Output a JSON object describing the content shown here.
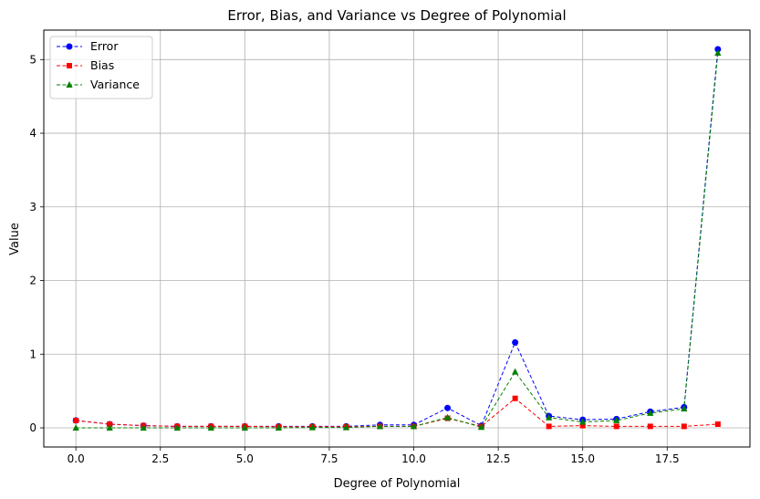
{
  "chart_data": {
    "type": "line",
    "title": "Error, Bias, and Variance vs Degree of Polynomial",
    "xlabel": "Degree of Polynomial",
    "ylabel": "Value",
    "xlim": [
      -0.95,
      19.95
    ],
    "ylim": [
      -0.26,
      5.4
    ],
    "xticks": [
      0.0,
      2.5,
      5.0,
      7.5,
      10.0,
      12.5,
      15.0,
      17.5
    ],
    "xtick_labels": [
      "0.0",
      "2.5",
      "5.0",
      "7.5",
      "10.0",
      "12.5",
      "15.0",
      "17.5"
    ],
    "yticks": [
      0,
      1,
      2,
      3,
      4,
      5
    ],
    "ytick_labels": [
      "0",
      "1",
      "2",
      "3",
      "4",
      "5"
    ],
    "grid": true,
    "legend_position": "top-left",
    "x": [
      0,
      1,
      2,
      3,
      4,
      5,
      6,
      7,
      8,
      9,
      10,
      11,
      12,
      13,
      14,
      15,
      16,
      17,
      18,
      19
    ],
    "series": [
      {
        "name": "Error",
        "color": "#0000ff",
        "marker": "circle",
        "values": [
          0.1,
          0.05,
          0.03,
          0.02,
          0.02,
          0.02,
          0.02,
          0.02,
          0.02,
          0.04,
          0.04,
          0.27,
          0.03,
          1.16,
          0.16,
          0.11,
          0.12,
          0.22,
          0.28,
          5.14
        ]
      },
      {
        "name": "Bias",
        "color": "#ff0000",
        "marker": "square",
        "values": [
          0.1,
          0.05,
          0.03,
          0.02,
          0.02,
          0.02,
          0.015,
          0.015,
          0.015,
          0.02,
          0.02,
          0.13,
          0.02,
          0.4,
          0.02,
          0.03,
          0.02,
          0.02,
          0.02,
          0.05
        ]
      },
      {
        "name": "Variance",
        "color": "#008000",
        "marker": "triangle",
        "values": [
          0.0,
          0.0,
          0.0,
          0.0,
          0.0,
          0.0,
          0.0,
          0.005,
          0.005,
          0.02,
          0.02,
          0.14,
          0.01,
          0.76,
          0.14,
          0.08,
          0.1,
          0.2,
          0.26,
          5.09
        ]
      }
    ]
  }
}
